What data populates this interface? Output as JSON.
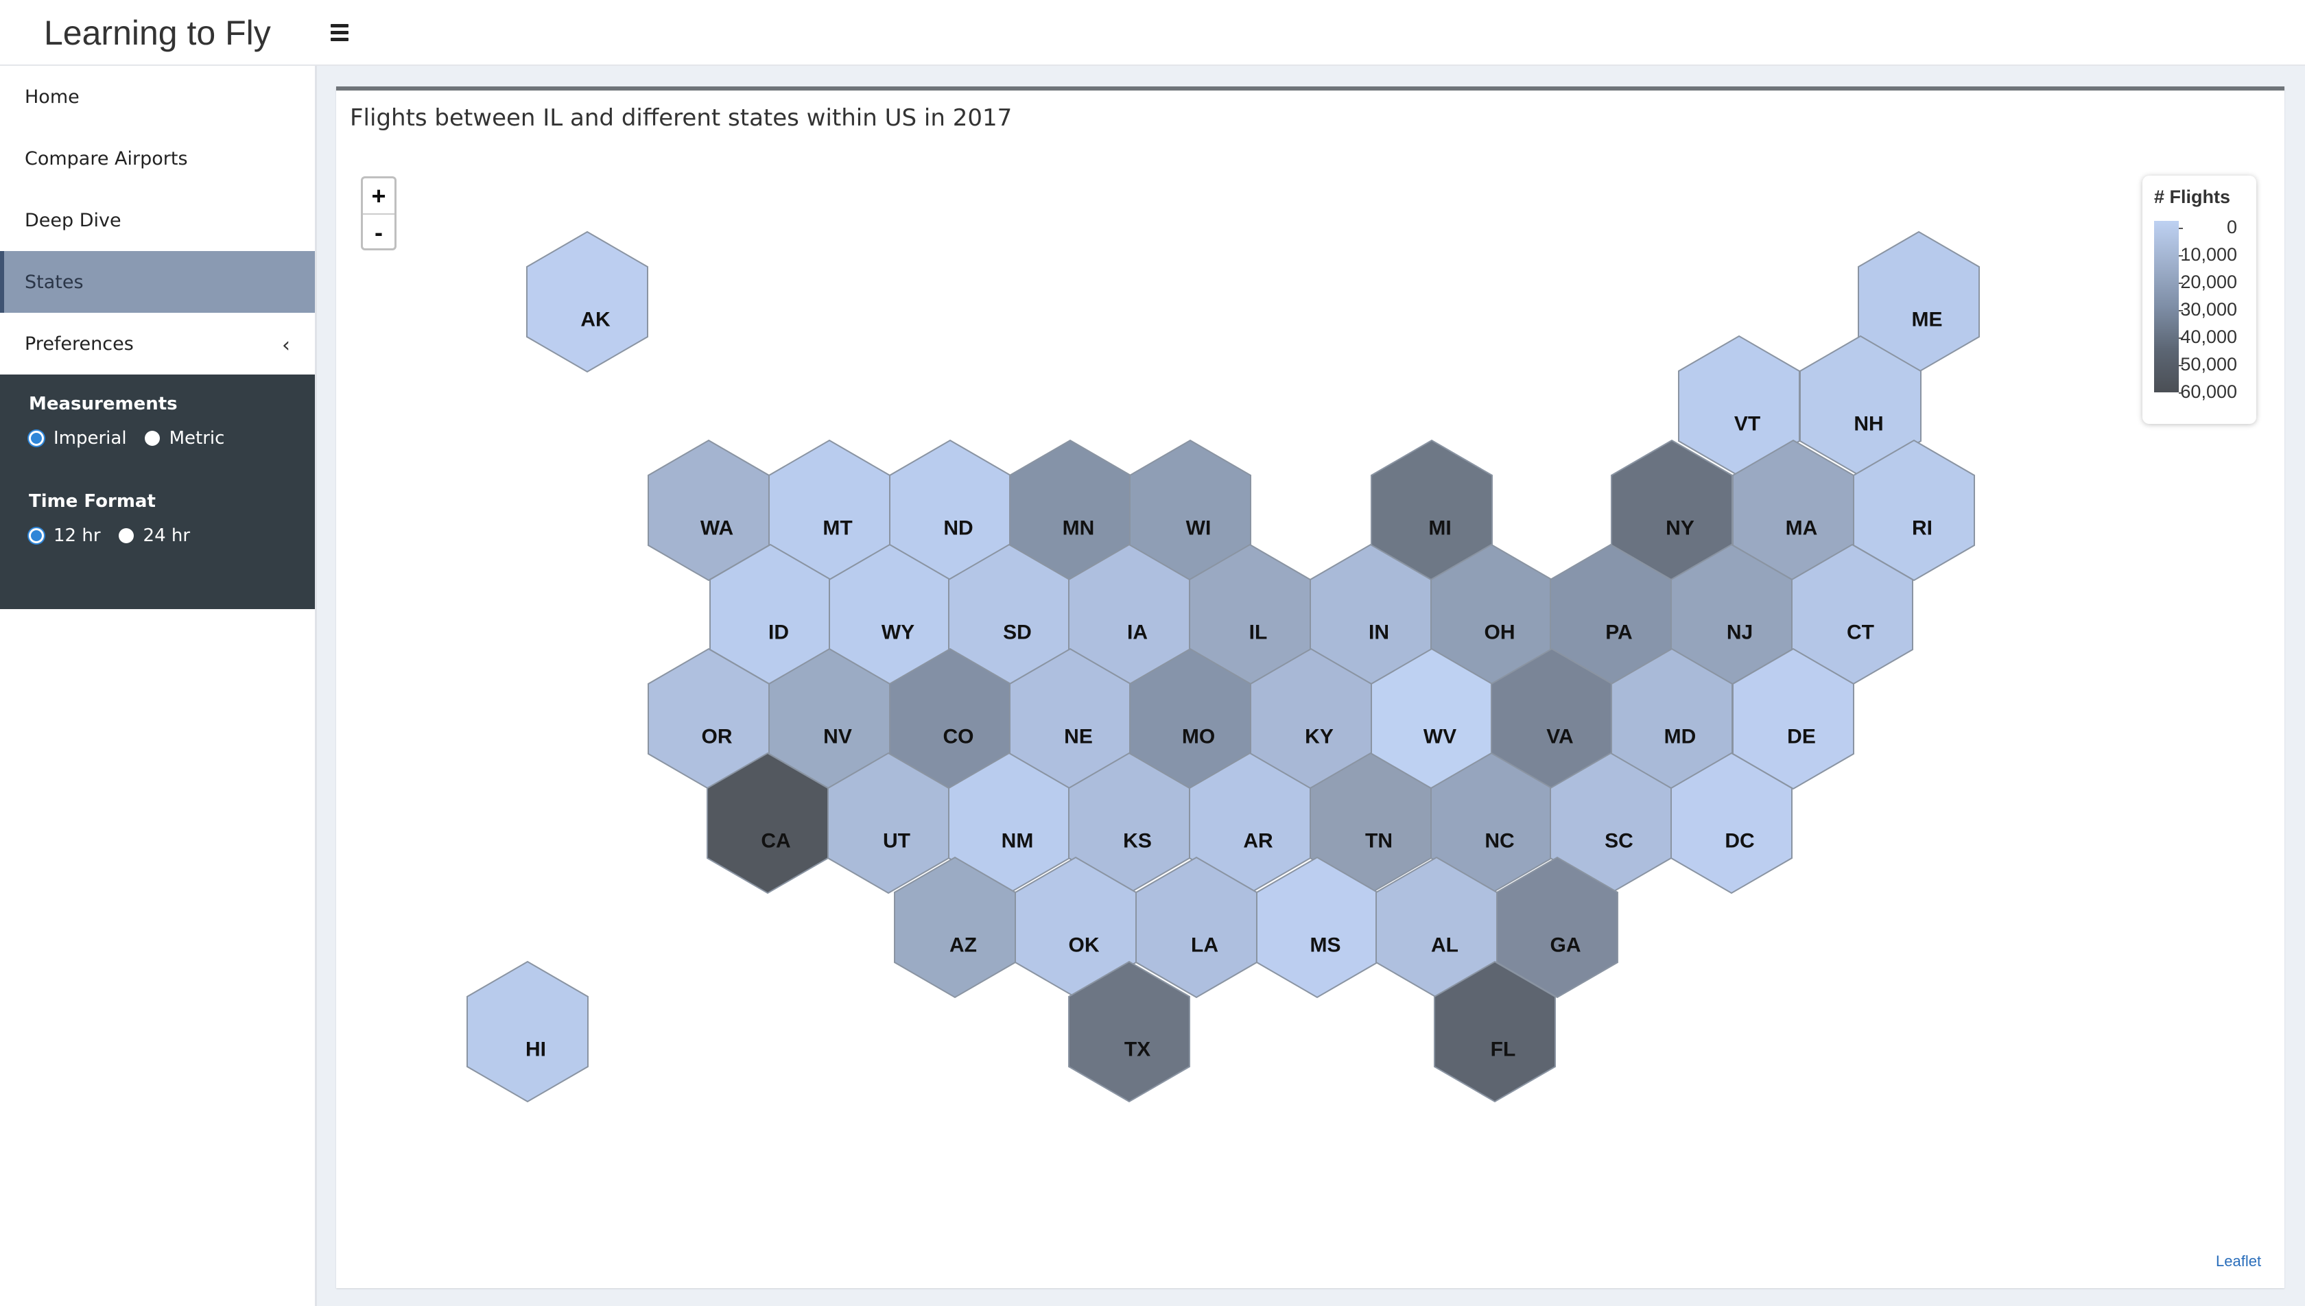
{
  "app": {
    "title": "Learning to Fly"
  },
  "sidebar": {
    "items": [
      {
        "label": "Home"
      },
      {
        "label": "Compare Airports"
      },
      {
        "label": "Deep Dive"
      },
      {
        "label": "States",
        "active": true
      },
      {
        "label": "Preferences",
        "icon": "chevron-left-icon"
      }
    ],
    "preferences": {
      "measurements_heading": "Measurements",
      "measurement_options": [
        "Imperial",
        "Metric"
      ],
      "measurement_selected": "Imperial",
      "time_heading": "Time Format",
      "time_options": [
        "12 hr",
        "24 hr"
      ],
      "time_selected": "12 hr"
    }
  },
  "main": {
    "card_title": "Flights between IL and different states within US in 2017",
    "zoom_in": "+",
    "zoom_out": "-",
    "attribution": "Leaflet"
  },
  "legend": {
    "title": "# Flights",
    "labels": [
      "0",
      "10,000",
      "20,000",
      "30,000",
      "40,000",
      "50,000",
      "60,000"
    ]
  },
  "chart_data": {
    "type": "heatmap",
    "title": "Flights between IL and different states within US in 2017",
    "legend_title": "# Flights",
    "scale": {
      "min": 0,
      "max": 60000,
      "color_low": "#bed1f2",
      "color_high": "#4b4f55"
    },
    "states": [
      {
        "abbr": "AK",
        "color": "#bccef0"
      },
      {
        "abbr": "ME",
        "color": "#b7caec"
      },
      {
        "abbr": "VT",
        "color": "#b9ccee"
      },
      {
        "abbr": "NH",
        "color": "#b8cbec"
      },
      {
        "abbr": "WA",
        "color": "#a4b4d0"
      },
      {
        "abbr": "MT",
        "color": "#b9ccee"
      },
      {
        "abbr": "ND",
        "color": "#b9ccee"
      },
      {
        "abbr": "MN",
        "color": "#8593a8"
      },
      {
        "abbr": "WI",
        "color": "#8f9eb5"
      },
      {
        "abbr": "MI",
        "color": "#6e7886"
      },
      {
        "abbr": "NY",
        "color": "#6a7381"
      },
      {
        "abbr": "MA",
        "color": "#9aa9c2"
      },
      {
        "abbr": "RI",
        "color": "#b8cbec"
      },
      {
        "abbr": "ID",
        "color": "#b9ccee"
      },
      {
        "abbr": "WY",
        "color": "#b9ccee"
      },
      {
        "abbr": "SD",
        "color": "#b4c6e7"
      },
      {
        "abbr": "IA",
        "color": "#aebfdf"
      },
      {
        "abbr": "IL",
        "color": "#9aa9c2"
      },
      {
        "abbr": "IN",
        "color": "#a9bad8"
      },
      {
        "abbr": "OH",
        "color": "#909fb6"
      },
      {
        "abbr": "PA",
        "color": "#8795ab"
      },
      {
        "abbr": "NJ",
        "color": "#95a4bc"
      },
      {
        "abbr": "CT",
        "color": "#b4c6e7"
      },
      {
        "abbr": "OR",
        "color": "#afc0df"
      },
      {
        "abbr": "NV",
        "color": "#9babc4"
      },
      {
        "abbr": "CO",
        "color": "#8390a5"
      },
      {
        "abbr": "NE",
        "color": "#aebfdf"
      },
      {
        "abbr": "MO",
        "color": "#8694aa"
      },
      {
        "abbr": "KY",
        "color": "#a8b8d6"
      },
      {
        "abbr": "WV",
        "color": "#bed1f2"
      },
      {
        "abbr": "VA",
        "color": "#7a8597"
      },
      {
        "abbr": "MD",
        "color": "#a9bad8"
      },
      {
        "abbr": "DE",
        "color": "#bccef0"
      },
      {
        "abbr": "CA",
        "color": "#53585f"
      },
      {
        "abbr": "UT",
        "color": "#aabbd9"
      },
      {
        "abbr": "NM",
        "color": "#b9ccee"
      },
      {
        "abbr": "KS",
        "color": "#acbddc"
      },
      {
        "abbr": "AR",
        "color": "#b3c5e6"
      },
      {
        "abbr": "TN",
        "color": "#929fb4"
      },
      {
        "abbr": "NC",
        "color": "#96a5be"
      },
      {
        "abbr": "SC",
        "color": "#adbedd"
      },
      {
        "abbr": "DC",
        "color": "#bccef0"
      },
      {
        "abbr": "AZ",
        "color": "#9babc4"
      },
      {
        "abbr": "OK",
        "color": "#b5c7e8"
      },
      {
        "abbr": "LA",
        "color": "#aebfdf"
      },
      {
        "abbr": "MS",
        "color": "#bccef0"
      },
      {
        "abbr": "AL",
        "color": "#afc0df"
      },
      {
        "abbr": "GA",
        "color": "#7f8a9d"
      },
      {
        "abbr": "HI",
        "color": "#b8cbec"
      },
      {
        "abbr": "TX",
        "color": "#6d7684"
      },
      {
        "abbr": "FL",
        "color": "#5e6570"
      }
    ]
  }
}
